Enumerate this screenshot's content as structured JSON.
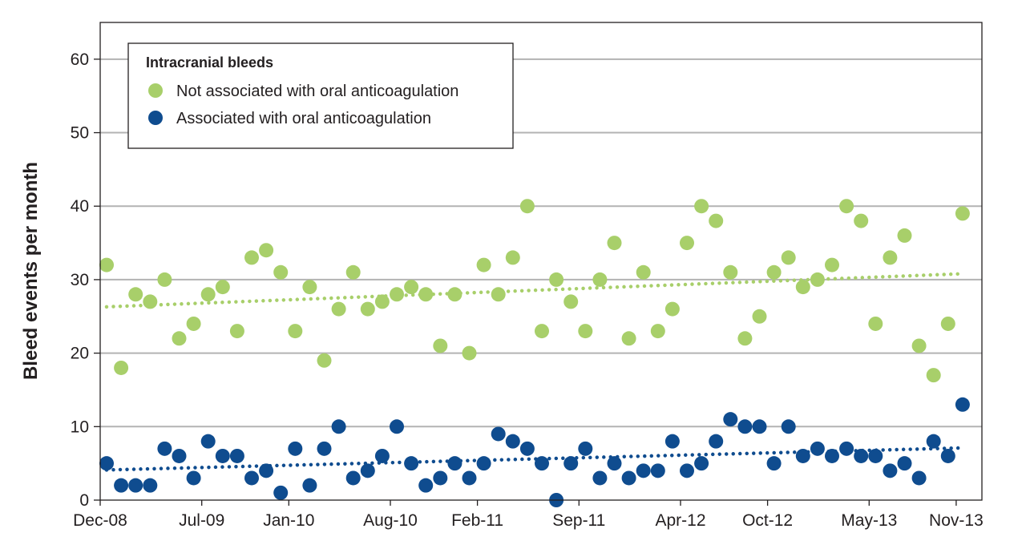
{
  "chart_data": {
    "type": "scatter",
    "ylabel": "Bleed events per month",
    "xlabel": "",
    "ylim": [
      0,
      65
    ],
    "yticks": [
      0,
      10,
      20,
      30,
      40,
      50,
      60
    ],
    "xticks": [
      "Dec-08",
      "Jul-09",
      "Jan-10",
      "Aug-10",
      "Feb-11",
      "Sep-11",
      "Apr-12",
      "Oct-12",
      "May-13",
      "Nov-13"
    ],
    "xtick_month_index": [
      0,
      7,
      13,
      20,
      26,
      33,
      40,
      46,
      53,
      59
    ],
    "x_month_count": 60,
    "grid": "horizontal",
    "legend_position": "top-left",
    "legend_title": "Intracranial bleeds",
    "series": [
      {
        "name": "Not associated with oral anticoagulation",
        "color": "#a8cf6a",
        "values": [
          32,
          18,
          28,
          27,
          30,
          22,
          24,
          28,
          29,
          23,
          33,
          34,
          31,
          23,
          29,
          19,
          26,
          31,
          26,
          27,
          28,
          29,
          28,
          21,
          28,
          20,
          32,
          28,
          33,
          40,
          23,
          30,
          27,
          23,
          30,
          35,
          22,
          31,
          23,
          26,
          35,
          40,
          38,
          31,
          22,
          25,
          31,
          33,
          29,
          30,
          32,
          40,
          38,
          24,
          33,
          36,
          21,
          17,
          24,
          39
        ],
        "trend": [
          26.3,
          30.8
        ]
      },
      {
        "name": "Associated with oral anticoagulation",
        "color": "#0f4c8f",
        "values": [
          5,
          2,
          2,
          2,
          7,
          6,
          3,
          8,
          6,
          6,
          3,
          4,
          1,
          7,
          2,
          7,
          10,
          3,
          4,
          6,
          10,
          5,
          2,
          3,
          5,
          3,
          5,
          9,
          8,
          7,
          5,
          0,
          5,
          7,
          3,
          5,
          3,
          4,
          4,
          8,
          4,
          5,
          8,
          11,
          10,
          10,
          5,
          10,
          6,
          7,
          6,
          7,
          6,
          6,
          4,
          5,
          3,
          8,
          6,
          13
        ],
        "trend": [
          4.1,
          7.1
        ]
      }
    ]
  }
}
